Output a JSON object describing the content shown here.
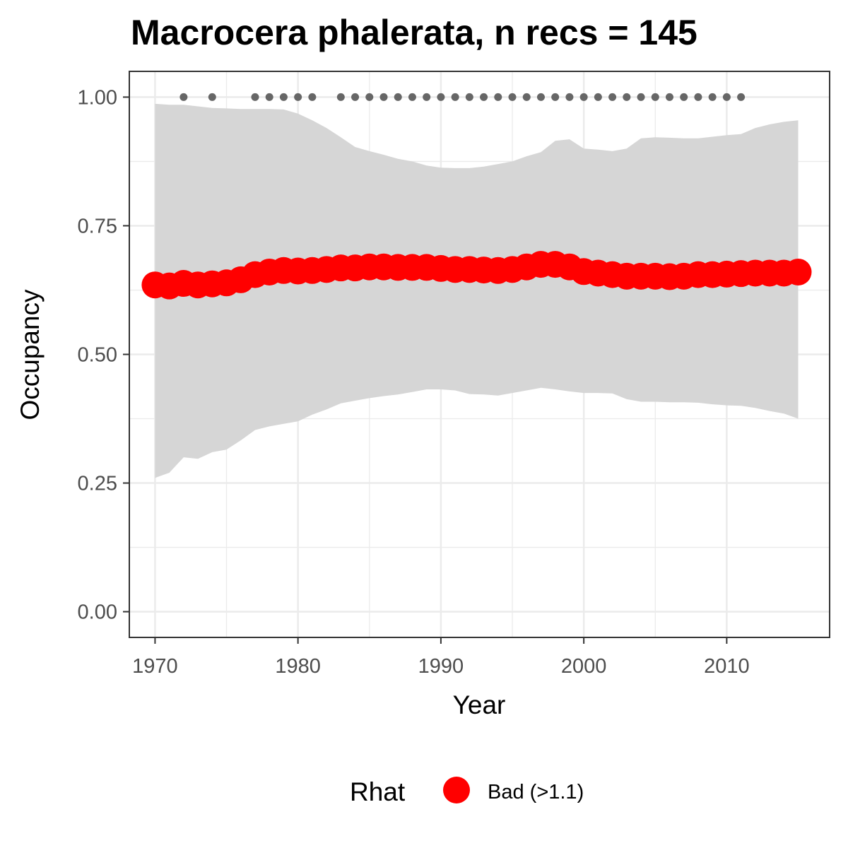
{
  "chart_data": {
    "type": "line",
    "title": "Macrocera phalerata, n recs = 145",
    "xlabel": "Year",
    "ylabel": "Occupancy",
    "xlim": [
      1968.2,
      2017.2
    ],
    "ylim": [
      -0.05,
      1.05
    ],
    "x_ticks": [
      1970,
      1980,
      1990,
      2000,
      2010
    ],
    "x_tick_labels": [
      "1970",
      "1980",
      "1990",
      "2000",
      "2010"
    ],
    "y_ticks": [
      0,
      0.25,
      0.5,
      0.75,
      1.0
    ],
    "y_tick_labels": [
      "0.00",
      "0.25",
      "0.50",
      "0.75",
      "1.00"
    ],
    "grid": true,
    "x": [
      1970,
      1971,
      1972,
      1973,
      1974,
      1975,
      1976,
      1977,
      1978,
      1979,
      1980,
      1981,
      1982,
      1983,
      1984,
      1985,
      1986,
      1987,
      1988,
      1989,
      1990,
      1991,
      1992,
      1993,
      1994,
      1995,
      1996,
      1997,
      1998,
      1999,
      2000,
      2001,
      2002,
      2003,
      2004,
      2005,
      2006,
      2007,
      2008,
      2009,
      2010,
      2011,
      2012,
      2013,
      2014,
      2015
    ],
    "series": [
      {
        "name": "Bad (>1.1)",
        "values": [
          0.635,
          0.633,
          0.638,
          0.635,
          0.637,
          0.639,
          0.645,
          0.655,
          0.66,
          0.663,
          0.662,
          0.663,
          0.665,
          0.668,
          0.668,
          0.67,
          0.67,
          0.669,
          0.669,
          0.669,
          0.667,
          0.665,
          0.665,
          0.664,
          0.663,
          0.665,
          0.67,
          0.675,
          0.675,
          0.67,
          0.661,
          0.658,
          0.655,
          0.652,
          0.652,
          0.652,
          0.651,
          0.652,
          0.655,
          0.655,
          0.656,
          0.657,
          0.658,
          0.658,
          0.658,
          0.66
        ]
      }
    ],
    "ribbon": {
      "upper": [
        0.987,
        0.985,
        0.985,
        0.982,
        0.979,
        0.978,
        0.977,
        0.977,
        0.977,
        0.976,
        0.968,
        0.955,
        0.94,
        0.922,
        0.903,
        0.895,
        0.888,
        0.88,
        0.875,
        0.867,
        0.863,
        0.862,
        0.862,
        0.865,
        0.87,
        0.875,
        0.885,
        0.893,
        0.915,
        0.918,
        0.9,
        0.898,
        0.895,
        0.9,
        0.92,
        0.922,
        0.921,
        0.92,
        0.92,
        0.923,
        0.926,
        0.928,
        0.94,
        0.947,
        0.952,
        0.955
      ],
      "lower": [
        0.26,
        0.27,
        0.3,
        0.297,
        0.31,
        0.315,
        0.333,
        0.353,
        0.36,
        0.365,
        0.37,
        0.383,
        0.393,
        0.405,
        0.41,
        0.415,
        0.419,
        0.422,
        0.427,
        0.432,
        0.432,
        0.43,
        0.423,
        0.422,
        0.42,
        0.425,
        0.43,
        0.435,
        0.432,
        0.428,
        0.425,
        0.425,
        0.424,
        0.413,
        0.408,
        0.408,
        0.407,
        0.407,
        0.406,
        0.403,
        0.401,
        0.4,
        0.396,
        0.39,
        0.385,
        0.375
      ]
    },
    "record_years": [
      1972,
      1974,
      1977,
      1978,
      1979,
      1980,
      1981,
      1983,
      1984,
      1985,
      1986,
      1987,
      1988,
      1989,
      1990,
      1991,
      1992,
      1993,
      1994,
      1995,
      1996,
      1997,
      1998,
      1999,
      2000,
      2001,
      2002,
      2003,
      2004,
      2005,
      2006,
      2007,
      2008,
      2009,
      2010,
      2011
    ],
    "record_marker_value": 1.0,
    "legend": {
      "title": "Rhat",
      "entries": [
        "Bad (>1.1)"
      ],
      "position": "bottom"
    },
    "colors": {
      "series": "#ff0000",
      "ribbon": "#d6d6d6",
      "records": "#666666",
      "panel_border": "#333333",
      "grid": "#ebebeb"
    }
  }
}
